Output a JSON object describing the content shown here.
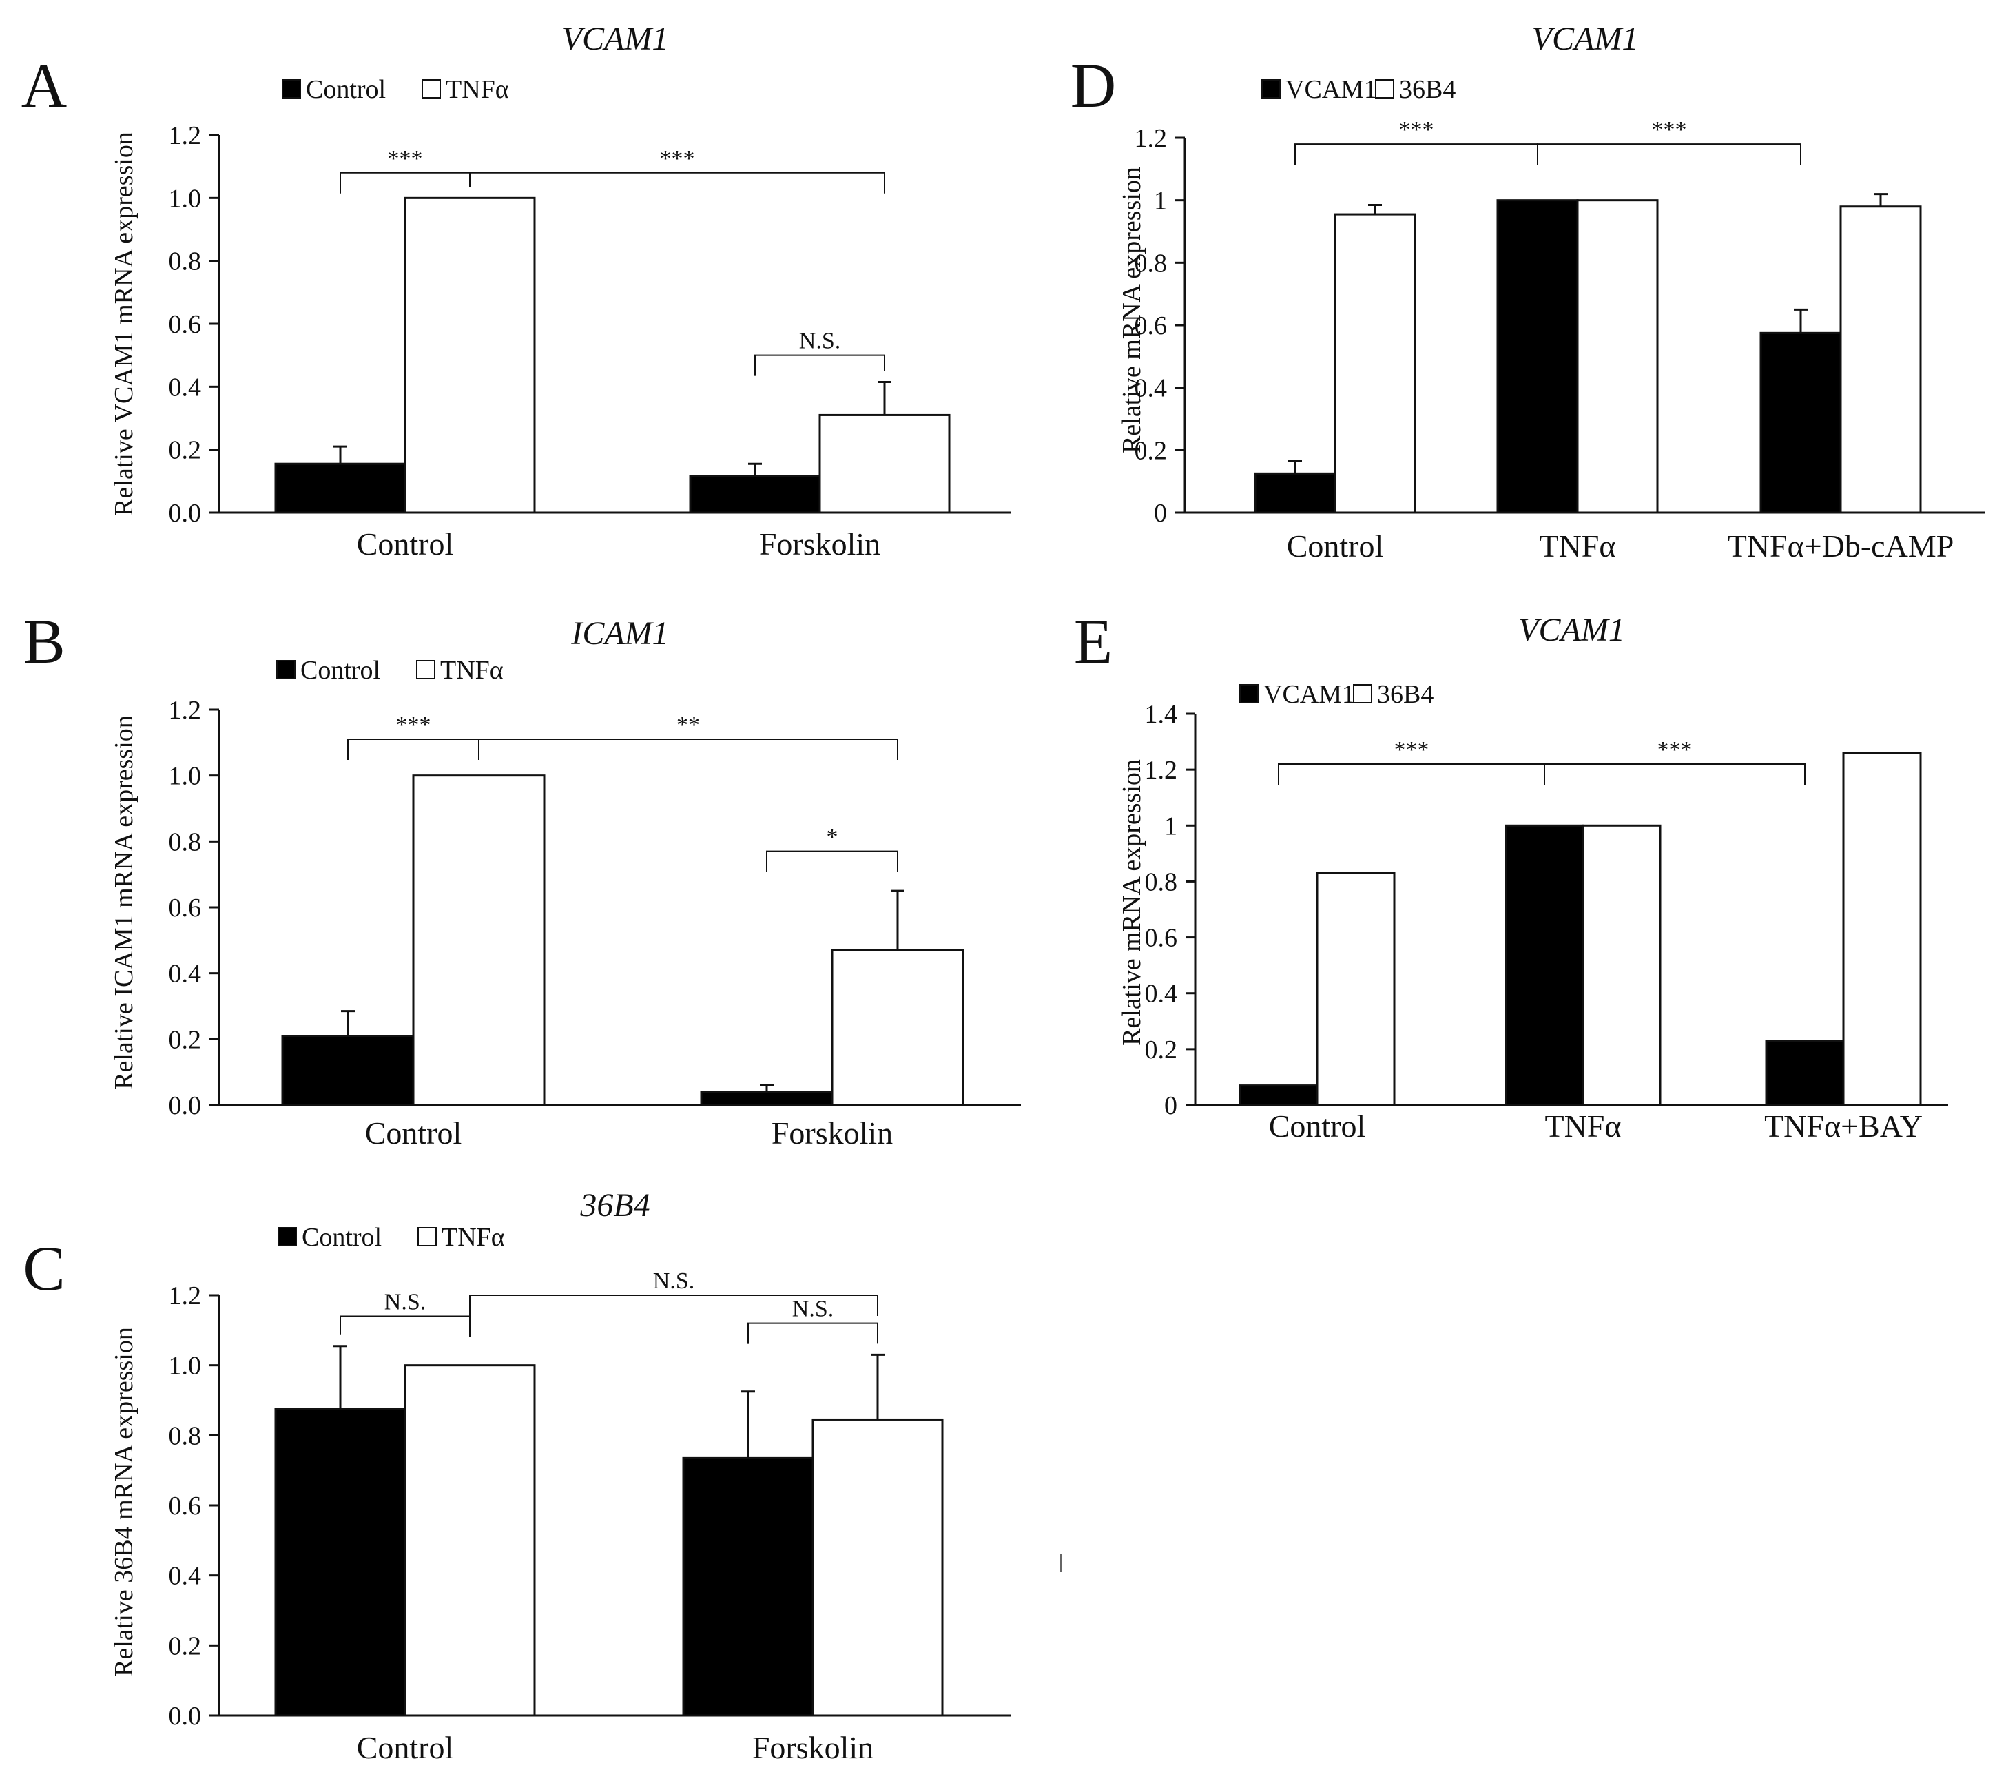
{
  "colors": {
    "black_bar": "#000000",
    "white_bar": "#ffffff",
    "axis": "#111111",
    "stroke": "#111111"
  },
  "chart_data": [
    {
      "id": "A",
      "panel_label": "A",
      "type": "bar",
      "title": "VCAM1",
      "ylabel": "Relative VCAM1 mRNA expression",
      "ylim": [
        0,
        1.2
      ],
      "yticks": [
        0.0,
        0.2,
        0.4,
        0.6,
        0.8,
        1.0,
        1.2
      ],
      "ytick_labels": [
        "0.0",
        "0.2",
        "0.4",
        "0.6",
        "0.8",
        "1.0",
        "1.2"
      ],
      "categories": [
        "Control",
        "Forskolin"
      ],
      "series": [
        {
          "name": "Control",
          "values": [
            0.155,
            0.115
          ],
          "errors": [
            0.055,
            0.04
          ]
        },
        {
          "name": "TNFα",
          "values": [
            1.0,
            0.31
          ],
          "errors": [
            0,
            0.105
          ]
        }
      ],
      "significance": [
        {
          "label": "***",
          "from": [
            0,
            0
          ],
          "to": [
            0,
            1
          ],
          "level": 1.08
        },
        {
          "label": "***",
          "from": [
            0,
            1
          ],
          "to": [
            1,
            1
          ],
          "level": 1.08
        },
        {
          "label": "N.S.",
          "from": [
            1,
            0
          ],
          "to": [
            1,
            1
          ],
          "level": 0.5
        }
      ]
    },
    {
      "id": "B",
      "panel_label": "B",
      "type": "bar",
      "title": "ICAM1",
      "ylabel": "Relative ICAM1 mRNA expression",
      "ylim": [
        0,
        1.2
      ],
      "yticks": [
        0.0,
        0.2,
        0.4,
        0.6,
        0.8,
        1.0,
        1.2
      ],
      "ytick_labels": [
        "0.0",
        "0.2",
        "0.4",
        "0.6",
        "0.8",
        "1.0",
        "1.2"
      ],
      "categories": [
        "Control",
        "Forskolin"
      ],
      "series": [
        {
          "name": "Control",
          "values": [
            0.21,
            0.04
          ],
          "errors": [
            0.075,
            0.02
          ]
        },
        {
          "name": "TNFα",
          "values": [
            1.0,
            0.47
          ],
          "errors": [
            0,
            0.18
          ]
        }
      ],
      "significance": [
        {
          "label": "***",
          "from": [
            0,
            0
          ],
          "to": [
            0,
            1
          ],
          "level": 1.11
        },
        {
          "label": "**",
          "from": [
            0,
            1
          ],
          "to": [
            1,
            1
          ],
          "level": 1.11
        },
        {
          "label": "*",
          "from": [
            1,
            0
          ],
          "to": [
            1,
            1
          ],
          "level": 0.77
        }
      ]
    },
    {
      "id": "C",
      "panel_label": "C",
      "type": "bar",
      "title": "36B4",
      "ylabel": "Relative 36B4 mRNA expression",
      "ylim": [
        0,
        1.2
      ],
      "yticks": [
        0.0,
        0.2,
        0.4,
        0.6,
        0.8,
        1.0,
        1.2
      ],
      "ytick_labels": [
        "0.0",
        "0.2",
        "0.4",
        "0.6",
        "0.8",
        "1.0",
        "1.2"
      ],
      "categories": [
        "Control",
        "Forskolin"
      ],
      "series": [
        {
          "name": "Control",
          "values": [
            0.875,
            0.735
          ],
          "errors": [
            0.18,
            0.19
          ]
        },
        {
          "name": "TNFα",
          "values": [
            1.0,
            0.845
          ],
          "errors": [
            0,
            0.185
          ]
        }
      ],
      "significance": [
        {
          "label": "N.S.",
          "from": [
            0,
            0
          ],
          "to": [
            0,
            1
          ],
          "level": 1.14
        },
        {
          "label": "N.S.",
          "from": [
            0,
            1
          ],
          "to": [
            1,
            1
          ],
          "level": 1.2
        },
        {
          "label": "N.S.",
          "from": [
            1,
            0
          ],
          "to": [
            1,
            1
          ],
          "level": 1.12
        }
      ]
    },
    {
      "id": "D",
      "panel_label": "D",
      "type": "bar",
      "title": "VCAM1",
      "ylabel": "Relative mRNA expression",
      "ylim": [
        0,
        1.2
      ],
      "yticks": [
        0,
        0.2,
        0.4,
        0.6,
        0.8,
        1.0,
        1.2
      ],
      "ytick_labels": [
        "0",
        "0.2",
        "0.4",
        "0.6",
        "0.8",
        "1",
        "1.2"
      ],
      "categories": [
        "Control",
        "TNFα",
        "TNFα+Db-cAMP"
      ],
      "series": [
        {
          "name": "VCAM1",
          "values": [
            0.125,
            1.0,
            0.575
          ],
          "errors": [
            0.04,
            0,
            0.075
          ]
        },
        {
          "name": "36B4",
          "values": [
            0.955,
            1.0,
            0.98
          ],
          "errors": [
            0.03,
            0,
            0.04
          ]
        }
      ],
      "significance": [
        {
          "label": "***",
          "from": [
            0,
            0
          ],
          "to": [
            1,
            0
          ],
          "level": 1.18
        },
        {
          "label": "***",
          "from": [
            1,
            0
          ],
          "to": [
            2,
            0
          ],
          "level": 1.18
        }
      ]
    },
    {
      "id": "E",
      "panel_label": "E",
      "type": "bar",
      "title": "VCAM1",
      "ylabel": "Relative mRNA expression",
      "ylim": [
        0,
        1.4
      ],
      "yticks": [
        0,
        0.2,
        0.4,
        0.6,
        0.8,
        1.0,
        1.2,
        1.4
      ],
      "ytick_labels": [
        "0",
        "0.2",
        "0.4",
        "0.6",
        "0.8",
        "1",
        "1.2",
        "1.4"
      ],
      "categories": [
        "Control",
        "TNFα",
        "TNFα+BAY"
      ],
      "series": [
        {
          "name": "VCAM1",
          "values": [
            0.07,
            1.0,
            0.23
          ],
          "errors": [
            0,
            0,
            0
          ]
        },
        {
          "name": "36B4",
          "values": [
            0.83,
            1.0,
            1.26
          ],
          "errors": [
            0,
            0,
            0
          ]
        }
      ],
      "significance": [
        {
          "label": "***",
          "from": [
            0,
            0
          ],
          "to": [
            1,
            0
          ],
          "level": 1.22
        },
        {
          "label": "***",
          "from": [
            1,
            0
          ],
          "to": [
            2,
            0
          ],
          "level": 1.22
        }
      ]
    }
  ]
}
